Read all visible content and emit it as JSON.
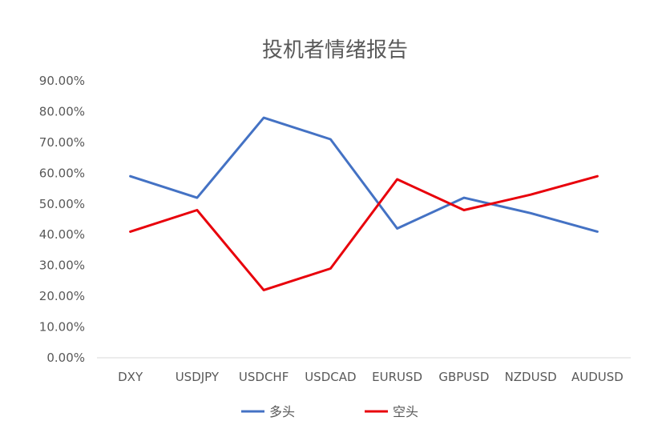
{
  "chart_data": {
    "type": "line",
    "title": "投机者情绪报告",
    "xlabel": "",
    "ylabel": "",
    "categories": [
      "DXY",
      "USDJPY",
      "USDCHF",
      "USDCAD",
      "EURUSD",
      "GBPUSD",
      "NZDUSD",
      "AUDUSD"
    ],
    "y_ticks": [
      "0.00%",
      "10.00%",
      "20.00%",
      "30.00%",
      "40.00%",
      "50.00%",
      "60.00%",
      "70.00%",
      "80.00%",
      "90.00%"
    ],
    "ylim": [
      0,
      90
    ],
    "grid": false,
    "legend_position": "bottom",
    "series": [
      {
        "name": "多头",
        "color": "#4472C4",
        "values": [
          59,
          52,
          78,
          71,
          42,
          52,
          47,
          41
        ]
      },
      {
        "name": "空头",
        "color": "#E8000B",
        "values": [
          41,
          48,
          22,
          29,
          58,
          48,
          53,
          59
        ]
      }
    ]
  }
}
